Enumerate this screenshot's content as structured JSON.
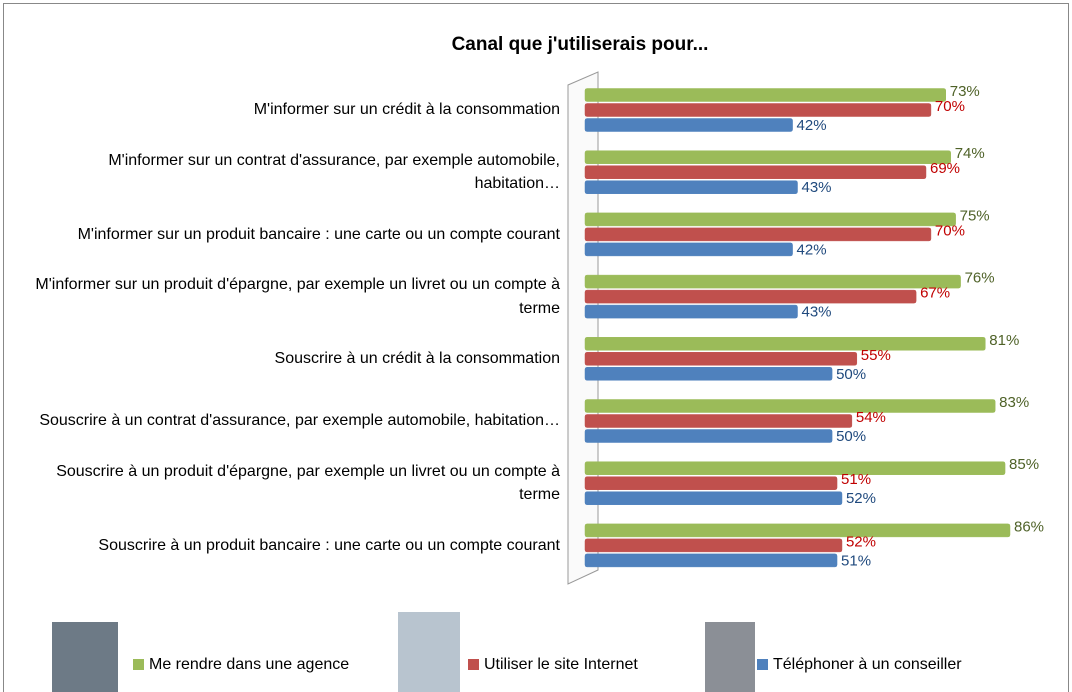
{
  "chart_data": {
    "type": "bar",
    "orientation": "horizontal",
    "title": "Canal que j'utiliserais pour...",
    "categories": [
      "M'informer sur un crédit à la consommation",
      "M'informer sur un contrat d'assurance, par exemple automobile, habitation…",
      "M'informer sur un produit bancaire : une carte ou un compte courant",
      "M'informer sur un produit d'épargne, par exemple un livret ou un compte à terme",
      "Souscrire à un crédit à la consommation",
      "Souscrire à un contrat d'assurance, par exemple automobile, habitation…",
      "Souscrire à un produit d'épargne, par exemple un livret ou un compte à terme",
      "Souscrire à un produit bancaire : une carte ou un compte courant"
    ],
    "series": [
      {
        "name": "Me rendre dans une agence",
        "color": "#9bbb59",
        "label_color": "#4f6228",
        "values": [
          73,
          74,
          75,
          76,
          81,
          83,
          85,
          86
        ],
        "value_labels": [
          "73%",
          "74%",
          "75%",
          "76%",
          "81%",
          "83%",
          "85%",
          "86%"
        ]
      },
      {
        "name": "Utiliser le site Internet",
        "color": "#c0504d",
        "label_color": "#c00000",
        "values": [
          70,
          69,
          70,
          67,
          55,
          54,
          51,
          52
        ],
        "value_labels": [
          "70%",
          "69%",
          "70%",
          "67%",
          "55%",
          "54%",
          "51%",
          "52%"
        ]
      },
      {
        "name": "Téléphoner à un conseiller",
        "color": "#4f81bd",
        "label_color": "#1f497d",
        "values": [
          42,
          43,
          42,
          43,
          50,
          50,
          52,
          51
        ],
        "value_labels": [
          "42%",
          "43%",
          "42%",
          "43%",
          "50%",
          "50%",
          "52%",
          "51%"
        ]
      }
    ]
  }
}
